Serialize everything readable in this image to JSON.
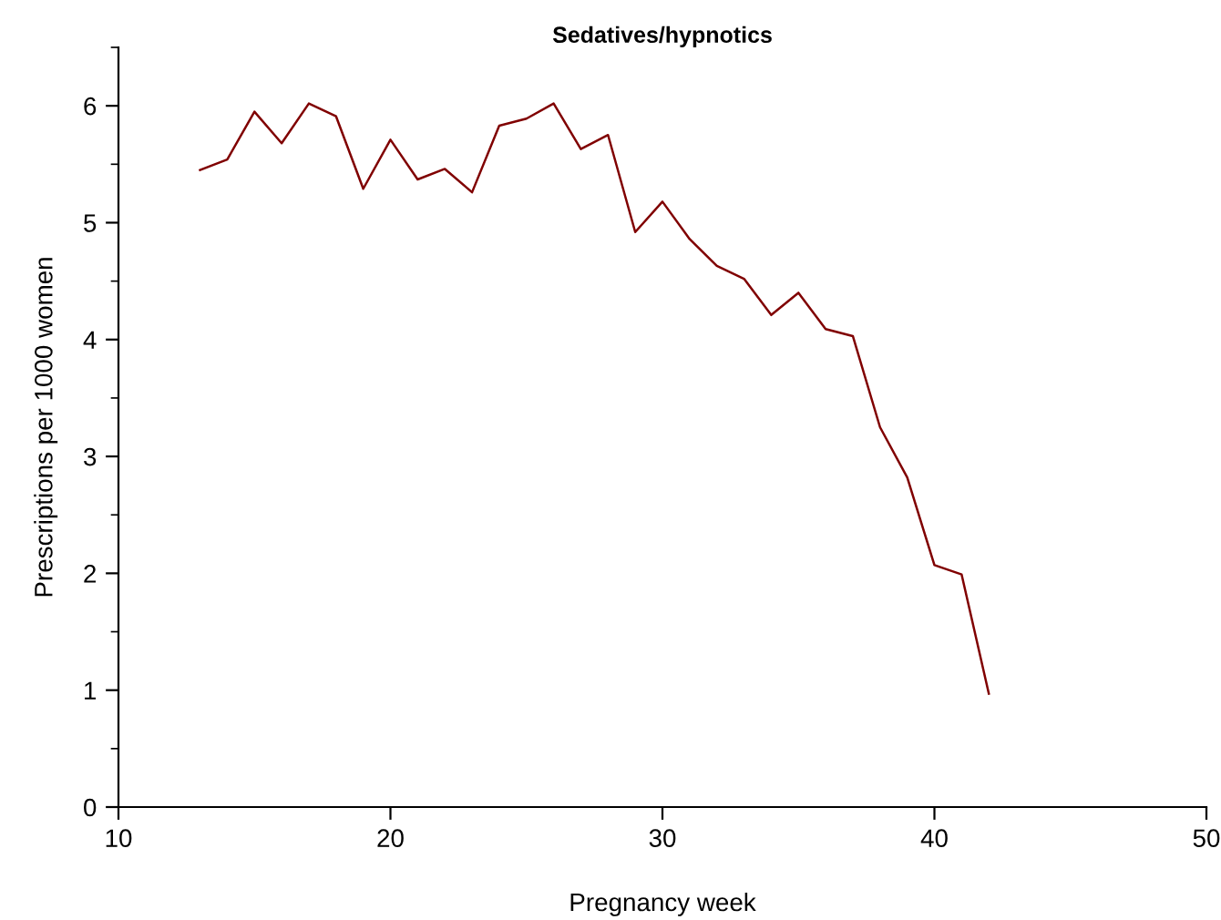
{
  "chart_data": {
    "type": "line",
    "title": "Sedatives/hypnotics",
    "xlabel": "Pregnancy week",
    "ylabel": "Prescriptions per 1000 women",
    "x": [
      13,
      14,
      15,
      16,
      17,
      18,
      19,
      20,
      21,
      22,
      23,
      24,
      25,
      26,
      27,
      28,
      29,
      30,
      31,
      32,
      33,
      34,
      35,
      36,
      37,
      38,
      39,
      40,
      41,
      42
    ],
    "series": [
      {
        "color": "#800000",
        "values": [
          5.45,
          5.54,
          5.95,
          5.68,
          6.02,
          5.91,
          5.29,
          5.71,
          5.37,
          5.46,
          5.26,
          5.83,
          5.89,
          6.02,
          5.63,
          5.75,
          4.92,
          5.18,
          4.86,
          4.63,
          4.52,
          4.21,
          4.4,
          4.09,
          4.03,
          3.25,
          2.82,
          2.07,
          1.99,
          0.97
        ]
      }
    ],
    "xlim": [
      10,
      50
    ],
    "ylim": [
      0,
      6.5
    ],
    "xticks": [
      10,
      20,
      30,
      40,
      50
    ],
    "yticks": [
      0,
      {
        "value": 0.5,
        "label": null
      },
      1,
      {
        "value": 1.5,
        "label": null
      },
      2,
      {
        "value": 2.5,
        "label": null
      },
      3,
      {
        "value": 3.5,
        "label": null
      },
      4,
      {
        "value": 4.5,
        "label": null
      },
      5,
      {
        "value": 5.5,
        "label": null
      },
      6,
      {
        "value": 6.5,
        "label": null
      }
    ],
    "grid": false,
    "legend": false,
    "marker": "none",
    "line_style": "solid"
  }
}
